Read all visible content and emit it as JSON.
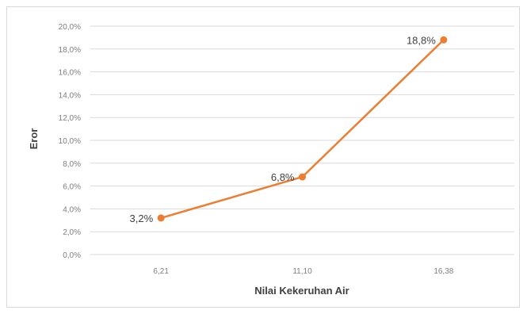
{
  "chart_data": {
    "type": "line",
    "title": "",
    "xlabel": "Nilai Kekeruhan Air",
    "ylabel": "Eror",
    "categories": [
      "6,21",
      "11,10",
      "16,38"
    ],
    "series": [
      {
        "values": [
          3.2,
          6.8,
          18.8
        ],
        "data_labels": [
          "3,2%",
          "6,8%",
          "18,8%"
        ],
        "color": "#ed7d31"
      }
    ],
    "ylim": [
      0,
      20
    ],
    "yticks": [
      0,
      2,
      4,
      6,
      8,
      10,
      12,
      14,
      16,
      18,
      20
    ],
    "ytick_labels": [
      "0,0%",
      "2,0%",
      "4,0%",
      "6,0%",
      "8,0%",
      "10,0%",
      "12,0%",
      "14,0%",
      "16,0%",
      "18,0%",
      "20,0%"
    ],
    "grid": true,
    "legend": "none"
  },
  "colors": {
    "series": "#ed7d31",
    "grid": "#d9d9d9",
    "tick_text": "#7f7f7f",
    "axis_title": "#404040",
    "data_label": "#404040"
  }
}
